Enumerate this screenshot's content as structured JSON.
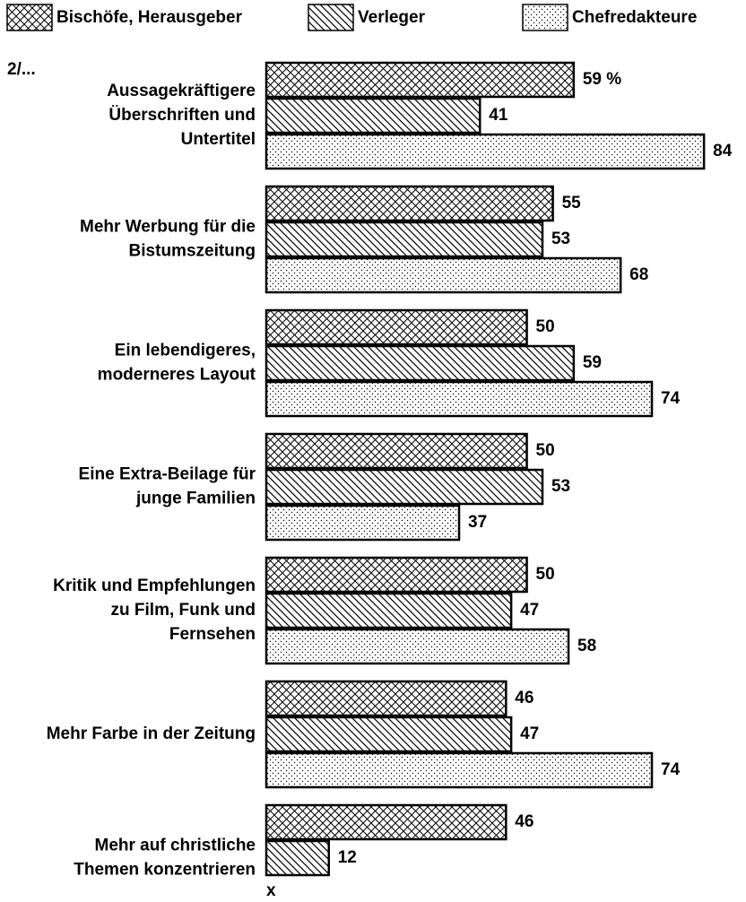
{
  "chart_data": {
    "type": "hbar",
    "note": "2/...",
    "footer": "x",
    "categories": [
      "Aussagekräftigere\nÜberschriften und\nUntertitel",
      "Mehr Werbung für die\nBistumszeitung",
      "Ein lebendigeres,\nmoderneres Layout",
      "Eine Extra-Beilage für\njunge Familien",
      "Kritik und Empfehlungen\nzu Film, Funk und\nFernsehen",
      "Mehr Farbe in der Zeitung",
      "Mehr auf christliche\nThemen konzentrieren"
    ],
    "series": [
      {
        "name": "Bischöfe, Herausgeber",
        "color": "#000000",
        "pattern": "crosshatch",
        "values": [
          59,
          55,
          50,
          50,
          50,
          46,
          46
        ],
        "value_labels": [
          "59 %",
          "55",
          "50",
          "50",
          "50",
          "46",
          "46"
        ]
      },
      {
        "name": "Verleger",
        "color": "#000000",
        "pattern": "hatch",
        "values": [
          41,
          53,
          59,
          53,
          47,
          47,
          12
        ]
      },
      {
        "name": "Chefredakteure",
        "color": "#000000",
        "pattern": "dots",
        "values": [
          84,
          68,
          74,
          37,
          58,
          74,
          null
        ]
      }
    ],
    "xlim": [
      0,
      90
    ]
  }
}
